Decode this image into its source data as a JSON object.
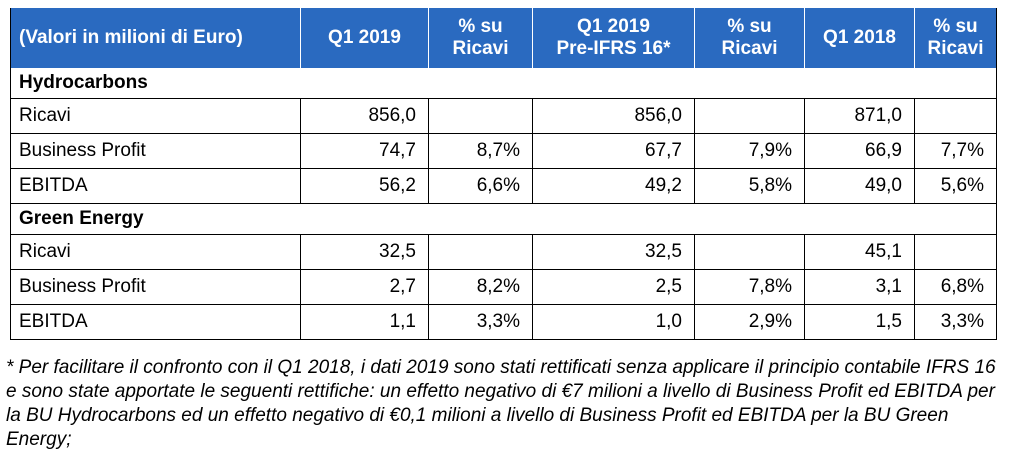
{
  "header": {
    "col0": "(Valori in milioni di Euro)",
    "col1": "Q1 2019",
    "col2_line1": "% su",
    "col2_line2": "Ricavi",
    "col3_line1": "Q1 2019",
    "col3_line2": "Pre-IFRS 16*",
    "col4_line1": "% su",
    "col4_line2": "Ricavi",
    "col5": "Q1 2018",
    "col6_line1": "% su",
    "col6_line2": "Ricavi"
  },
  "sections": [
    {
      "title": "Hydrocarbons",
      "rows": [
        {
          "label": "Ricavi",
          "q1_2019": "856,0",
          "pct1": "",
          "pre_ifrs": "856,0",
          "pct2": "",
          "q1_2018": "871,0",
          "pct3": ""
        },
        {
          "label": "Business Profit",
          "q1_2019": "74,7",
          "pct1": "8,7%",
          "pre_ifrs": "67,7",
          "pct2": "7,9%",
          "q1_2018": "66,9",
          "pct3": "7,7%"
        },
        {
          "label": "EBITDA",
          "q1_2019": "56,2",
          "pct1": "6,6%",
          "pre_ifrs": "49,2",
          "pct2": "5,8%",
          "q1_2018": "49,0",
          "pct3": "5,6%"
        }
      ]
    },
    {
      "title": "Green Energy",
      "rows": [
        {
          "label": "Ricavi",
          "q1_2019": "32,5",
          "pct1": "",
          "pre_ifrs": "32,5",
          "pct2": "",
          "q1_2018": "45,1",
          "pct3": ""
        },
        {
          "label": "Business Profit",
          "q1_2019": "2,7",
          "pct1": "8,2%",
          "pre_ifrs": "2,5",
          "pct2": "7,8%",
          "q1_2018": "3,1",
          "pct3": "6,8%"
        },
        {
          "label": "EBITDA",
          "q1_2019": "1,1",
          "pct1": "3,3%",
          "pre_ifrs": "1,0",
          "pct2": "2,9%",
          "q1_2018": "1,5",
          "pct3": "3,3%"
        }
      ]
    }
  ],
  "footnote": "* Per facilitare il confronto con il Q1 2018, i dati 2019 sono stati rettificati senza applicare il principio contabile IFRS 16 e sono state apportate le seguenti rettifiche: un effetto negativo di €7 milioni a livello di Business Profit ed EBITDA per la BU Hydrocarbons ed un effetto negativo di €0,1 milioni a livello di Business Profit ed EBITDA per la BU Green Energy;",
  "colors": {
    "header_bg": "#2a6ac0",
    "header_text": "#ffffff"
  }
}
